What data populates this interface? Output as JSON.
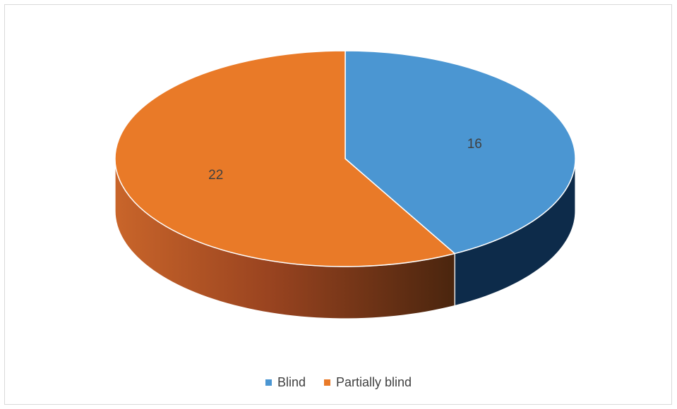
{
  "chart_data": {
    "type": "pie",
    "style": "3d",
    "categories": [
      "Blind",
      "Partially blind"
    ],
    "values": [
      16,
      22
    ],
    "colors": [
      "#4b96d2",
      "#e97a28"
    ],
    "title": "",
    "legend_position": "bottom",
    "data_labels": [
      "16",
      "22"
    ]
  }
}
